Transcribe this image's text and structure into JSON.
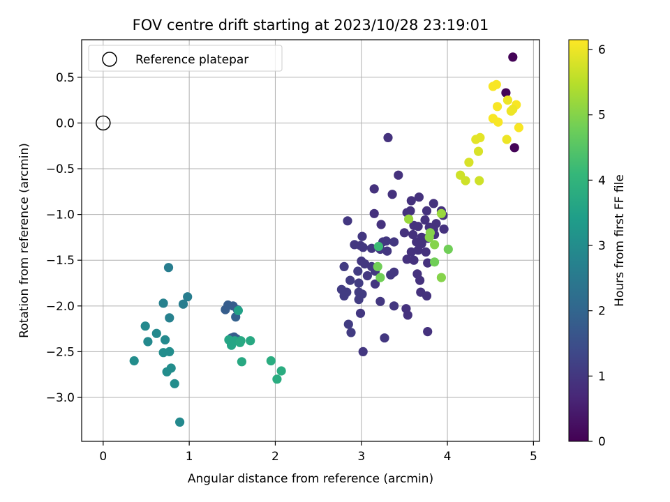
{
  "chart_data": {
    "type": "scatter",
    "title": "FOV centre drift starting at 2023/10/28 23:19:01",
    "xlabel": "Angular distance from reference (arcmin)",
    "ylabel": "Rotation from reference (arcmin)",
    "xlim": [
      -0.25,
      5.07
    ],
    "ylim": [
      -3.48,
      0.91
    ],
    "xticks": [
      0,
      1,
      2,
      3,
      4,
      5
    ],
    "yticks": [
      0.5,
      0.0,
      -0.5,
      -1.0,
      -1.5,
      -2.0,
      -2.5,
      -3.0
    ],
    "grid": true,
    "legend": {
      "placement": "top-left",
      "entries": [
        {
          "label": "Reference platepar",
          "marker": "open-circle"
        }
      ]
    },
    "reference_point": {
      "x": 0,
      "y": 0
    },
    "colorbar": {
      "label": "Hours from first FF file",
      "range": [
        0,
        6.15
      ],
      "ticks": [
        0,
        1,
        2,
        3,
        4,
        5,
        6
      ],
      "colormap": "viridis",
      "colors": [
        "#440154",
        "#482878",
        "#3e4989",
        "#31688e",
        "#26828e",
        "#1f9e89",
        "#35b779",
        "#6ece58",
        "#b5de2b",
        "#fde725"
      ]
    },
    "points": [
      [
        4.76,
        0.72,
        0.05
      ],
      [
        4.68,
        0.33,
        0.05
      ],
      [
        4.78,
        -0.27,
        0.05
      ],
      [
        4.53,
        0.4,
        6.1
      ],
      [
        4.57,
        0.42,
        6.1
      ],
      [
        4.7,
        0.25,
        6.0
      ],
      [
        4.58,
        0.18,
        6.1
      ],
      [
        4.74,
        0.13,
        6.0
      ],
      [
        4.8,
        0.2,
        6.1
      ],
      [
        4.53,
        0.05,
        6.1
      ],
      [
        4.76,
        0.15,
        6.0
      ],
      [
        4.59,
        0.01,
        6.1
      ],
      [
        4.83,
        -0.05,
        6.1
      ],
      [
        4.69,
        -0.18,
        6.0
      ],
      [
        4.38,
        -0.16,
        5.9
      ],
      [
        4.33,
        -0.18,
        5.9
      ],
      [
        4.36,
        -0.31,
        5.8
      ],
      [
        4.25,
        -0.43,
        5.8
      ],
      [
        4.15,
        -0.57,
        5.7
      ],
      [
        4.21,
        -0.63,
        5.7
      ],
      [
        4.37,
        -0.63,
        5.7
      ],
      [
        3.31,
        -0.16,
        0.9
      ],
      [
        3.43,
        -0.57,
        0.9
      ],
      [
        3.15,
        -0.72,
        0.9
      ],
      [
        3.36,
        -0.78,
        0.9
      ],
      [
        3.67,
        -0.81,
        0.9
      ],
      [
        3.58,
        -0.85,
        0.9
      ],
      [
        3.84,
        -0.88,
        0.9
      ],
      [
        3.53,
        -0.98,
        0.9
      ],
      [
        3.57,
        -0.96,
        0.9
      ],
      [
        3.76,
        -0.96,
        0.9
      ],
      [
        3.93,
        -0.96,
        0.9
      ],
      [
        3.15,
        -0.99,
        0.9
      ],
      [
        3.95,
        -1.01,
        0.9
      ],
      [
        2.84,
        -1.07,
        1.0
      ],
      [
        3.74,
        -1.06,
        0.9
      ],
      [
        3.87,
        -1.1,
        0.9
      ],
      [
        3.23,
        -1.11,
        0.9
      ],
      [
        3.61,
        -1.12,
        0.9
      ],
      [
        3.66,
        -1.13,
        0.9
      ],
      [
        3.79,
        -1.14,
        0.9
      ],
      [
        3.84,
        -1.16,
        0.9
      ],
      [
        3.96,
        -1.16,
        0.9
      ],
      [
        3.5,
        -1.2,
        0.9
      ],
      [
        3.01,
        -1.24,
        1.0
      ],
      [
        3.6,
        -1.22,
        0.9
      ],
      [
        3.7,
        -1.25,
        0.9
      ],
      [
        3.85,
        -1.22,
        0.9
      ],
      [
        3.77,
        -1.26,
        0.9
      ],
      [
        3.25,
        -1.3,
        1.0
      ],
      [
        3.29,
        -1.29,
        1.0
      ],
      [
        3.38,
        -1.3,
        1.0
      ],
      [
        3.64,
        -1.3,
        0.9
      ],
      [
        3.7,
        -1.32,
        0.9
      ],
      [
        2.92,
        -1.33,
        1.0
      ],
      [
        2.99,
        -1.34,
        1.0
      ],
      [
        3.02,
        -1.36,
        1.0
      ],
      [
        3.12,
        -1.37,
        1.0
      ],
      [
        3.22,
        -1.38,
        1.0
      ],
      [
        3.3,
        -1.4,
        1.0
      ],
      [
        3.58,
        -1.41,
        0.9
      ],
      [
        3.66,
        -1.39,
        0.9
      ],
      [
        3.75,
        -1.41,
        0.9
      ],
      [
        3.77,
        -1.53,
        0.9
      ],
      [
        3.53,
        -1.49,
        0.9
      ],
      [
        3.61,
        -1.5,
        0.9
      ],
      [
        3.0,
        -1.51,
        1.0
      ],
      [
        3.04,
        -1.54,
        1.0
      ],
      [
        3.12,
        -1.57,
        1.0
      ],
      [
        2.8,
        -1.57,
        1.1
      ],
      [
        2.96,
        -1.62,
        1.1
      ],
      [
        3.07,
        -1.67,
        1.0
      ],
      [
        3.16,
        -1.62,
        1.0
      ],
      [
        3.34,
        -1.66,
        1.0
      ],
      [
        3.38,
        -1.63,
        1.0
      ],
      [
        3.65,
        -1.65,
        0.9
      ],
      [
        3.68,
        -1.72,
        0.9
      ],
      [
        2.87,
        -1.72,
        1.1
      ],
      [
        2.97,
        -1.75,
        1.1
      ],
      [
        3.16,
        -1.76,
        1.0
      ],
      [
        2.77,
        -1.82,
        1.1
      ],
      [
        2.83,
        -1.85,
        1.1
      ],
      [
        2.97,
        -1.85,
        1.1
      ],
      [
        3.01,
        -1.87,
        1.1
      ],
      [
        2.8,
        -1.89,
        1.1
      ],
      [
        3.69,
        -1.85,
        0.9
      ],
      [
        3.76,
        -1.89,
        0.9
      ],
      [
        2.97,
        -1.93,
        1.1
      ],
      [
        3.22,
        -1.95,
        1.0
      ],
      [
        3.38,
        -2.0,
        1.0
      ],
      [
        3.52,
        -2.03,
        0.9
      ],
      [
        3.54,
        -2.1,
        0.9
      ],
      [
        2.99,
        -2.08,
        1.0
      ],
      [
        2.85,
        -2.2,
        1.1
      ],
      [
        2.88,
        -2.29,
        1.1
      ],
      [
        3.77,
        -2.28,
        0.9
      ],
      [
        3.27,
        -2.35,
        1.0
      ],
      [
        3.02,
        -2.5,
        1.0
      ],
      [
        3.55,
        -1.05,
        5.2
      ],
      [
        3.8,
        -1.2,
        5.0
      ],
      [
        3.79,
        -1.25,
        5.0
      ],
      [
        3.85,
        -1.33,
        5.0
      ],
      [
        4.01,
        -1.38,
        4.8
      ],
      [
        3.2,
        -1.35,
        4.2
      ],
      [
        3.85,
        -1.52,
        4.8
      ],
      [
        3.93,
        -1.69,
        5.0
      ],
      [
        3.19,
        -1.57,
        4.8
      ],
      [
        3.22,
        -1.69,
        4.8
      ],
      [
        3.93,
        -0.99,
        5.2
      ],
      [
        0.76,
        -1.58,
        2.6
      ],
      [
        0.98,
        -1.9,
        2.6
      ],
      [
        0.93,
        -1.98,
        2.6
      ],
      [
        0.7,
        -1.97,
        2.7
      ],
      [
        0.77,
        -2.13,
        2.7
      ],
      [
        0.49,
        -2.22,
        2.9
      ],
      [
        0.62,
        -2.3,
        2.9
      ],
      [
        0.72,
        -2.37,
        2.9
      ],
      [
        0.52,
        -2.39,
        2.9
      ],
      [
        0.7,
        -2.51,
        3.0
      ],
      [
        0.77,
        -2.5,
        3.0
      ],
      [
        0.36,
        -2.6,
        3.0
      ],
      [
        0.79,
        -2.68,
        3.0
      ],
      [
        0.74,
        -2.72,
        3.0
      ],
      [
        0.83,
        -2.85,
        3.0
      ],
      [
        0.89,
        -3.27,
        2.9
      ],
      [
        1.42,
        -2.04,
        1.8
      ],
      [
        1.45,
        -1.99,
        1.8
      ],
      [
        1.51,
        -2.0,
        1.8
      ],
      [
        1.56,
        -2.04,
        1.8
      ],
      [
        1.54,
        -2.12,
        1.9
      ],
      [
        1.57,
        -2.05,
        3.5
      ],
      [
        1.49,
        -2.35,
        1.8
      ],
      [
        1.52,
        -2.34,
        1.8
      ],
      [
        1.55,
        -2.36,
        1.8
      ],
      [
        1.6,
        -2.38,
        3.7
      ],
      [
        1.46,
        -2.37,
        3.6
      ],
      [
        1.49,
        -2.43,
        3.6
      ],
      [
        1.53,
        -2.38,
        3.6
      ],
      [
        1.71,
        -2.38,
        3.7
      ],
      [
        1.59,
        -2.4,
        3.7
      ],
      [
        1.61,
        -2.61,
        3.7
      ],
      [
        1.95,
        -2.6,
        3.8
      ],
      [
        2.07,
        -2.71,
        3.8
      ],
      [
        2.02,
        -2.8,
        3.8
      ]
    ]
  }
}
